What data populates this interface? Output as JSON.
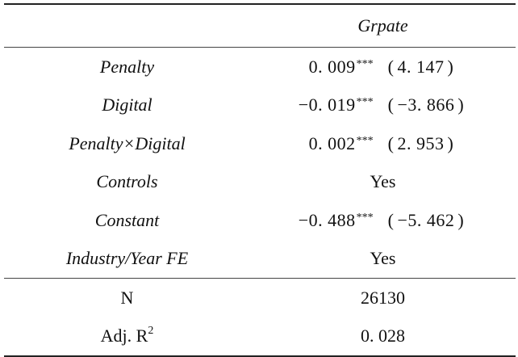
{
  "table": {
    "column_header": "Grpate",
    "rows": [
      {
        "label": "Penalty",
        "coef": "0. 009",
        "stars": "***",
        "tstat": "4. 147"
      },
      {
        "label": "Digital",
        "coef": "−0. 019",
        "stars": "***",
        "tstat": "−3. 866"
      },
      {
        "label": "Penalty×Digital",
        "coef": "0. 002",
        "stars": "***",
        "tstat": "2. 953"
      },
      {
        "label": "Controls",
        "value": "Yes"
      },
      {
        "label": "Constant",
        "coef": "−0. 488",
        "stars": "***",
        "tstat": "−5. 462"
      },
      {
        "label": "Industry/Year FE",
        "value": "Yes"
      }
    ],
    "stats": [
      {
        "label": "N",
        "value": "26130"
      },
      {
        "label": "Adj. R",
        "label_sup": "2",
        "value": "0. 028"
      }
    ],
    "paren_open": "(",
    "paren_close": ")"
  }
}
